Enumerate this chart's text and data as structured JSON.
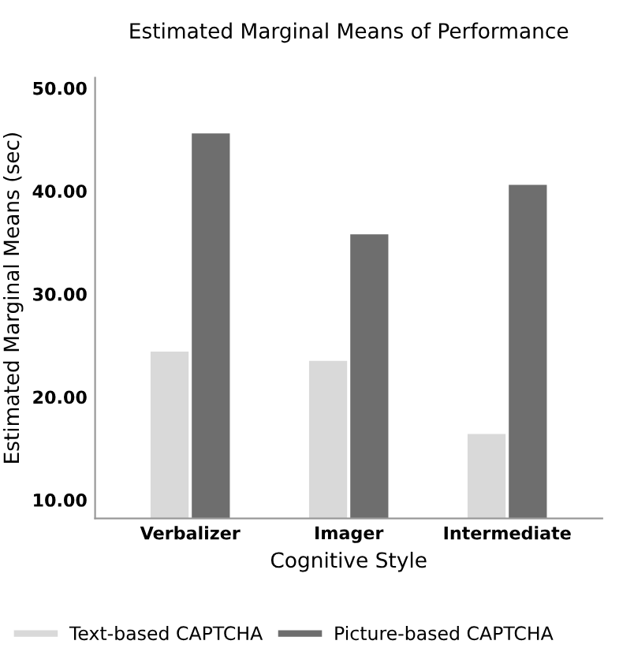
{
  "chart_data": {
    "type": "bar",
    "title": "Estimated Marginal Means of Performance",
    "xlabel": "Cognitive Style",
    "ylabel": "Estimated Marginal Means (sec)",
    "categories": [
      "Verbalizer",
      "Imager",
      "Intermediate"
    ],
    "series": [
      {
        "name": "Text-based CAPTCHA",
        "color": "#d9d9d9",
        "values": [
          24.4,
          23.5,
          16.4
        ]
      },
      {
        "name": "Picture-based CAPTCHA",
        "color": "#6e6e6e",
        "values": [
          45.6,
          35.8,
          40.6
        ]
      }
    ],
    "ylim": [
      8.2,
      51
    ],
    "yticks": [
      {
        "value": 10,
        "label": "10.00"
      },
      {
        "value": 20,
        "label": "20.00"
      },
      {
        "value": 30,
        "label": "30.00"
      },
      {
        "value": 40,
        "label": "40.00"
      },
      {
        "value": 50,
        "label": "50.00"
      }
    ],
    "grid": false,
    "legend": "bottom"
  }
}
